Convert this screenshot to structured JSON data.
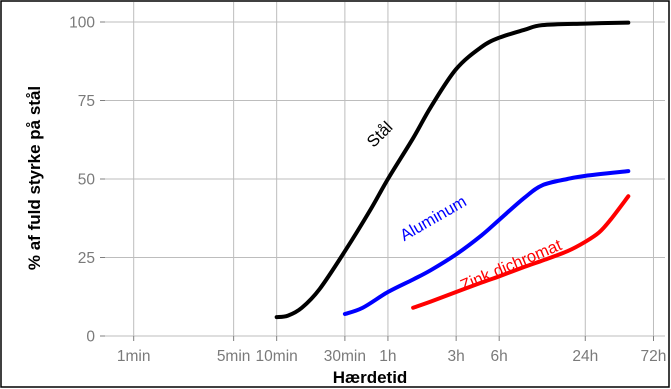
{
  "chart_data": {
    "type": "line",
    "xlabel": "Hærdetid",
    "ylabel": "% af fuld styrke på stål",
    "x_scale": "log",
    "x_unit": "min",
    "xlim": [
      0.63,
      5200
    ],
    "ylim": [
      0,
      100
    ],
    "grid": true,
    "x_ticks": [
      {
        "label": "1min",
        "value": 1
      },
      {
        "label": "5min",
        "value": 5
      },
      {
        "label": "10min",
        "value": 10
      },
      {
        "label": "30min",
        "value": 30
      },
      {
        "label": "1h",
        "value": 60
      },
      {
        "label": "3h",
        "value": 180
      },
      {
        "label": "6h",
        "value": 360
      },
      {
        "label": "24h",
        "value": 1440
      },
      {
        "label": "72h",
        "value": 4320
      }
    ],
    "y_ticks": [
      {
        "label": "0",
        "value": 0
      },
      {
        "label": "25",
        "value": 25
      },
      {
        "label": "50",
        "value": 50
      },
      {
        "label": "75",
        "value": 75
      },
      {
        "label": "100",
        "value": 100
      }
    ],
    "series": [
      {
        "name": "Stål",
        "color": "#000000",
        "label_rotation": -45,
        "label_anchor": {
          "x": 56,
          "y": 63
        },
        "points": [
          {
            "x": 10,
            "y": 6
          },
          {
            "x": 12,
            "y": 6.5
          },
          {
            "x": 15,
            "y": 9
          },
          {
            "x": 20,
            "y": 15
          },
          {
            "x": 30,
            "y": 27
          },
          {
            "x": 45,
            "y": 40
          },
          {
            "x": 60,
            "y": 50
          },
          {
            "x": 90,
            "y": 63
          },
          {
            "x": 120,
            "y": 73
          },
          {
            "x": 180,
            "y": 85
          },
          {
            "x": 270,
            "y": 92
          },
          {
            "x": 360,
            "y": 95
          },
          {
            "x": 540,
            "y": 97.5
          },
          {
            "x": 720,
            "y": 99
          },
          {
            "x": 1440,
            "y": 99.5
          },
          {
            "x": 2880,
            "y": 99.8
          }
        ]
      },
      {
        "name": "Aluminum",
        "color": "#0000ff",
        "label_rotation": -30,
        "label_anchor": {
          "x": 130,
          "y": 36
        },
        "points": [
          {
            "x": 30,
            "y": 7
          },
          {
            "x": 40,
            "y": 9
          },
          {
            "x": 60,
            "y": 14
          },
          {
            "x": 90,
            "y": 18
          },
          {
            "x": 120,
            "y": 21
          },
          {
            "x": 180,
            "y": 26
          },
          {
            "x": 270,
            "y": 32
          },
          {
            "x": 360,
            "y": 37
          },
          {
            "x": 540,
            "y": 44
          },
          {
            "x": 720,
            "y": 48
          },
          {
            "x": 1080,
            "y": 50
          },
          {
            "x": 1440,
            "y": 51
          },
          {
            "x": 2880,
            "y": 52.5
          }
        ]
      },
      {
        "name": "Zink dichromat",
        "color": "#ff0000",
        "label_rotation": -23,
        "label_anchor": {
          "x": 450,
          "y": 21
        },
        "points": [
          {
            "x": 90,
            "y": 9
          },
          {
            "x": 120,
            "y": 11
          },
          {
            "x": 180,
            "y": 14
          },
          {
            "x": 270,
            "y": 17
          },
          {
            "x": 360,
            "y": 19
          },
          {
            "x": 540,
            "y": 22
          },
          {
            "x": 720,
            "y": 24
          },
          {
            "x": 1080,
            "y": 27
          },
          {
            "x": 1440,
            "y": 30
          },
          {
            "x": 1800,
            "y": 33
          },
          {
            "x": 2160,
            "y": 37
          },
          {
            "x": 2880,
            "y": 44.5
          }
        ]
      }
    ]
  }
}
